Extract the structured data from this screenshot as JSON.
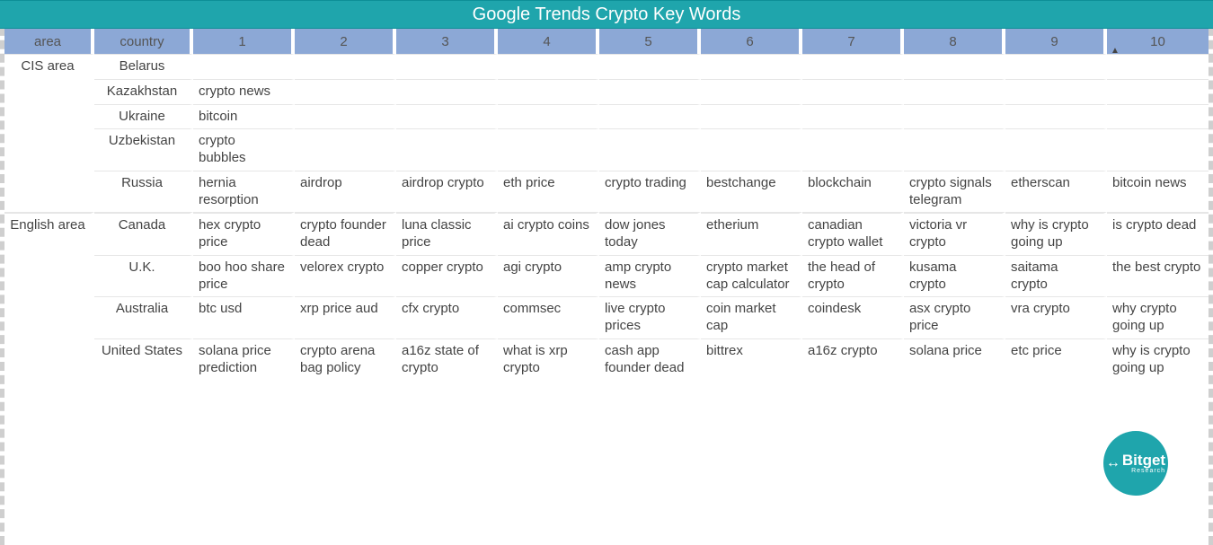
{
  "colors": {
    "title_bg": "#1fa5ac",
    "header_bg": "#8ca8d6",
    "border": "#e6e6e6",
    "logo": "#1fa5ac",
    "text": "#444444"
  },
  "title": "Google Trends Crypto Key Words",
  "headers": {
    "area": "area",
    "country": "country",
    "cols": [
      "1",
      "2",
      "3",
      "4",
      "5",
      "6",
      "7",
      "8",
      "9",
      "10"
    ]
  },
  "sort_indicator_on_col": 9,
  "groups": [
    {
      "area": "CIS area",
      "rows": [
        {
          "country": "Belarus",
          "kw": [
            "",
            "",
            "",
            "",
            "",
            "",
            "",
            "",
            "",
            ""
          ]
        },
        {
          "country": "Kazakhstan",
          "kw": [
            "crypto news",
            "",
            "",
            "",
            "",
            "",
            "",
            "",
            "",
            ""
          ]
        },
        {
          "country": "Ukraine",
          "kw": [
            "bitcoin",
            "",
            "",
            "",
            "",
            "",
            "",
            "",
            "",
            ""
          ]
        },
        {
          "country": "Uzbekistan",
          "kw": [
            "crypto bubbles",
            "",
            "",
            "",
            "",
            "",
            "",
            "",
            "",
            ""
          ]
        },
        {
          "country": "Russia",
          "kw": [
            "hernia resorption",
            "airdrop",
            "airdrop crypto",
            "eth price",
            "crypto trading",
            "bestchange",
            "blockchain",
            "crypto signals telegram",
            "etherscan",
            "bitcoin news"
          ]
        }
      ]
    },
    {
      "area": "English area",
      "rows": [
        {
          "country": "Canada",
          "kw": [
            "hex crypto price",
            "crypto founder dead",
            "luna classic price",
            "ai crypto coins",
            "dow jones today",
            "etherium",
            "canadian crypto wallet",
            "victoria vr crypto",
            "why is crypto going up",
            "is crypto dead"
          ]
        },
        {
          "country": "U.K.",
          "kw": [
            "boo hoo share price",
            "velorex crypto",
            "copper crypto",
            "agi crypto",
            "amp crypto news",
            "crypto market cap calculator",
            "the head of crypto",
            "kusama crypto",
            "saitama crypto",
            "the best crypto"
          ]
        },
        {
          "country": "Australia",
          "kw": [
            "btc usd",
            "xrp price aud",
            "cfx crypto",
            "commsec",
            "live crypto prices",
            "coin market cap",
            "coindesk",
            "asx crypto price",
            "vra crypto",
            "why crypto going up"
          ]
        },
        {
          "country": "United States",
          "kw": [
            "solana price prediction",
            "crypto arena bag policy",
            "a16z state of crypto",
            "what is xrp crypto",
            "cash app founder dead",
            "bittrex",
            "a16z crypto",
            "solana price",
            "etc price",
            "why is crypto going up"
          ]
        }
      ]
    }
  ],
  "logo": {
    "glyph": "↔",
    "main": "Bitget",
    "sub": "Research"
  }
}
